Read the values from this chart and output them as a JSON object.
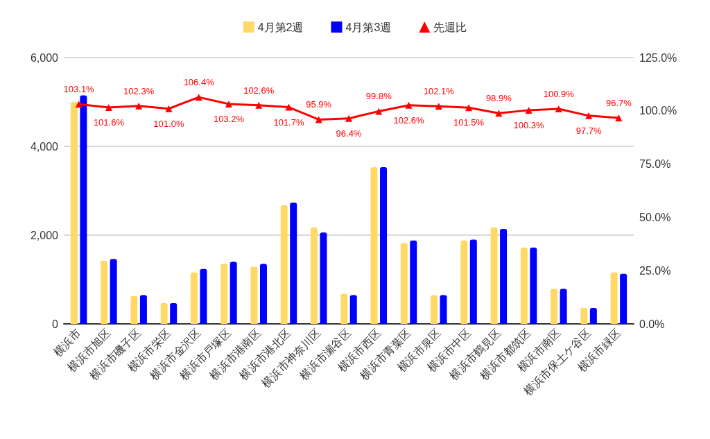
{
  "chart_data": {
    "type": "bar",
    "categories": [
      "横浜市",
      "横浜市旭区",
      "横浜市磯子区",
      "横浜市栄区",
      "横浜市金沢区",
      "横浜市戸塚区",
      "横浜市港南区",
      "横浜市港北区",
      "横浜市神奈川区",
      "横浜市瀬谷区",
      "横浜市西区",
      "横浜市青葉区",
      "横浜市泉区",
      "横浜市中区",
      "横浜市鶴見区",
      "横浜市都筑区",
      "横浜市南区",
      "横浜市保土ケ谷区",
      "横浜市緑区"
    ],
    "series": [
      {
        "name": "4月第2週",
        "color": "#ffd966",
        "values": [
          5000,
          1420,
          630,
          470,
          1160,
          1350,
          1290,
          2670,
          2170,
          680,
          3530,
          1820,
          650,
          1880,
          2170,
          1720,
          790,
          360,
          1160
        ]
      },
      {
        "name": "4月第3週",
        "color": "#0000ff",
        "values": [
          5150,
          1460,
          650,
          470,
          1240,
          1400,
          1350,
          2730,
          2060,
          650,
          3530,
          1880,
          650,
          1900,
          2140,
          1720,
          790,
          360,
          1130
        ]
      },
      {
        "name": "先週比",
        "type": "line",
        "axis": "y2",
        "color": "#ff0000",
        "marker": "triangle",
        "values": [
          103.1,
          101.6,
          102.3,
          101.0,
          106.4,
          103.2,
          102.6,
          101.7,
          95.9,
          96.4,
          99.8,
          102.6,
          102.1,
          101.5,
          98.9,
          100.3,
          100.9,
          97.7,
          96.7
        ],
        "value_labels": [
          "103.1%",
          "101.6%",
          "102.3%",
          "101.0%",
          "106.4%",
          "103.2%",
          "102.6%",
          "101.7%",
          "95.9%",
          "96.4%",
          "99.8%",
          "102.6%",
          "102.1%",
          "101.5%",
          "98.9%",
          "100.3%",
          "100.9%",
          "97.7%",
          "96.7%"
        ]
      }
    ],
    "ylim": [
      0,
      6000
    ],
    "yticks": [
      0,
      {
        "value": 2000,
        "label": "2,000"
      },
      {
        "value": 4000,
        "label": "4,000"
      },
      {
        "value": 6000,
        "label": "6,000"
      }
    ],
    "y2lim": [
      0,
      125
    ],
    "y2ticks": [
      {
        "value": 0,
        "label": "0.0%"
      },
      {
        "value": 25,
        "label": "25.0%"
      },
      {
        "value": 50,
        "label": "50.0%"
      },
      {
        "value": 75,
        "label": "75.0%"
      },
      {
        "value": 100,
        "label": "100.0%"
      },
      {
        "value": 125,
        "label": "125.0%"
      }
    ],
    "grid": "y",
    "legend": "top"
  }
}
